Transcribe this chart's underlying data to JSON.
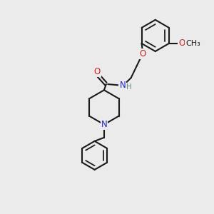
{
  "bg_color": "#ebebeb",
  "bond_color": "#1a1a1a",
  "nitrogen_color": "#2222cc",
  "oxygen_color": "#cc2222",
  "h_color": "#668888",
  "line_width": 1.5,
  "font_size": 8.5,
  "methoxy_label": "O",
  "methyl_label": "CH₃",
  "phenoxy_O": "O",
  "carbonyl_O": "O",
  "amide_N": "N",
  "amide_H": "H",
  "pip_N": "N"
}
